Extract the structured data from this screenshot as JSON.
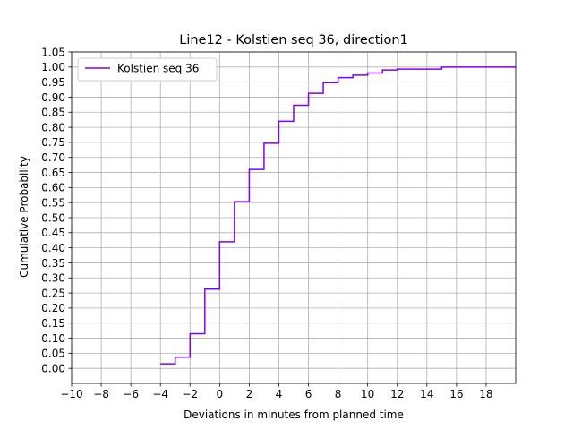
{
  "chart_data": {
    "type": "line",
    "title": "Line12 - Kolstien seq 36, direction1",
    "xlabel": "Deviations in minutes from planned time",
    "ylabel": "Cumulative Probability",
    "xlim": [
      -10,
      20
    ],
    "ylim": [
      -0.05,
      1.05
    ],
    "xticks": [
      -10,
      -8,
      -6,
      -4,
      -2,
      0,
      2,
      4,
      6,
      8,
      10,
      12,
      14,
      16,
      18
    ],
    "xtick_labels": [
      "−10",
      "−8",
      "−6",
      "−4",
      "−2",
      "0",
      "2",
      "4",
      "6",
      "8",
      "10",
      "12",
      "14",
      "16",
      "18"
    ],
    "yticks": [
      0,
      0.05,
      0.1,
      0.15,
      0.2,
      0.25,
      0.3,
      0.35,
      0.4,
      0.45,
      0.5,
      0.55,
      0.6,
      0.65,
      0.7,
      0.75,
      0.8,
      0.85,
      0.9,
      0.95,
      1.0,
      1.05
    ],
    "ytick_labels": [
      "0.00",
      "0.05",
      "0.10",
      "0.15",
      "0.20",
      "0.25",
      "0.30",
      "0.35",
      "0.40",
      "0.45",
      "0.50",
      "0.55",
      "0.60",
      "0.65",
      "0.70",
      "0.75",
      "0.80",
      "0.85",
      "0.90",
      "0.95",
      "1.00",
      "1.05"
    ],
    "grid": true,
    "legend_position": "top-left",
    "step": "post",
    "series": [
      {
        "name": "Kolstien seq 36",
        "color": "#7f00ff",
        "x": [
          -4,
          -3,
          -2,
          -1,
          0,
          1,
          2,
          3,
          4,
          5,
          6,
          7,
          8,
          9,
          10,
          11,
          12,
          15,
          20
        ],
        "y": [
          0.015,
          0.037,
          0.115,
          0.263,
          0.42,
          0.553,
          0.66,
          0.747,
          0.82,
          0.873,
          0.913,
          0.948,
          0.965,
          0.973,
          0.98,
          0.99,
          0.993,
          1.0,
          1.0
        ]
      }
    ]
  }
}
